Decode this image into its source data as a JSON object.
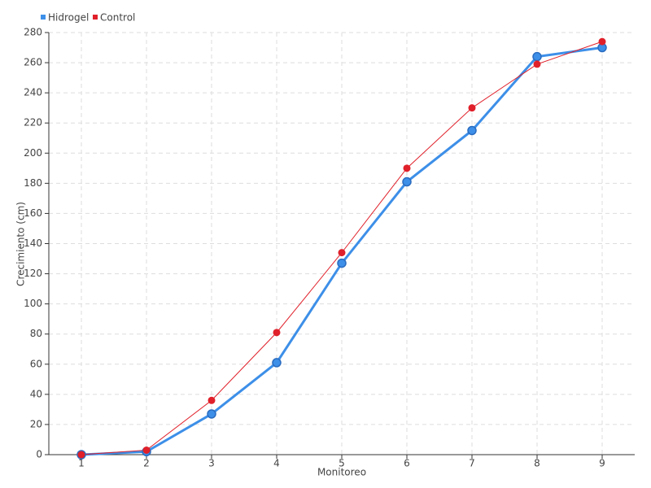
{
  "chart_data": {
    "type": "line",
    "x_label": "Monitoreo",
    "y_label": "Crecimiento (cm)",
    "x": [
      1,
      2,
      3,
      4,
      5,
      6,
      7,
      8,
      9
    ],
    "xlim": [
      0.5,
      9.5
    ],
    "xticks": [
      1,
      2,
      3,
      4,
      5,
      6,
      7,
      8,
      9
    ],
    "ylim": [
      0,
      280
    ],
    "yticks": [
      0,
      20,
      40,
      60,
      80,
      100,
      120,
      140,
      160,
      180,
      200,
      220,
      240,
      260,
      280
    ],
    "grid": true,
    "legend": "top-left",
    "series": [
      {
        "name": "Hidrogel",
        "color": "#3d8fe8",
        "values": [
          0,
          2,
          27,
          61,
          127,
          181,
          215,
          264,
          270
        ]
      },
      {
        "name": "Control",
        "color": "#e0202a",
        "values": [
          0,
          3,
          36,
          81,
          134,
          190,
          230,
          259,
          274
        ]
      }
    ]
  }
}
